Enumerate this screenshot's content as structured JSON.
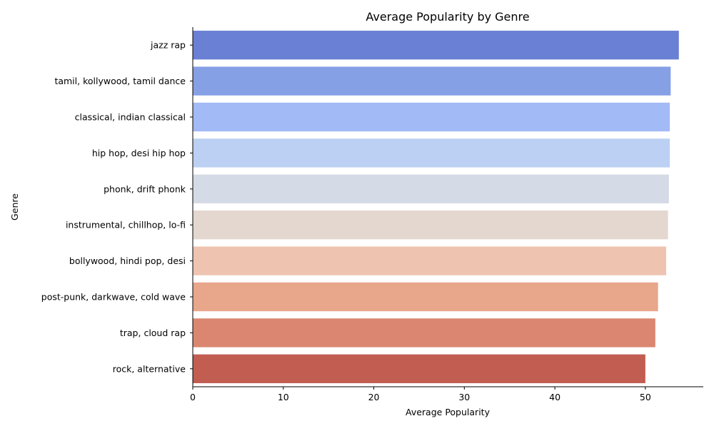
{
  "chart_data": {
    "type": "bar",
    "orientation": "horizontal",
    "title": "Average Popularity by Genre",
    "xlabel": "Average Popularity",
    "ylabel": "Genre",
    "categories": [
      "jazz rap",
      "tamil, kollywood, tamil dance",
      "classical, indian classical",
      "hip hop, desi hip hop",
      "phonk, drift phonk",
      "instrumental, chillhop, lo-fi",
      "bollywood, hindi pop, desi",
      "post-punk, darkwave, cold wave",
      "trap, cloud rap",
      "rock, alternative"
    ],
    "values": [
      53.7,
      52.8,
      52.7,
      52.7,
      52.6,
      52.5,
      52.3,
      51.4,
      51.1,
      50.0
    ],
    "xlim": [
      0,
      56.4
    ],
    "xticks": [
      0,
      10,
      20,
      30,
      40,
      50
    ],
    "grid": false,
    "legend": "none",
    "colors": [
      "#6a80d4",
      "#86a0e6",
      "#a2baf5",
      "#bcd0f3",
      "#d4dae6",
      "#e4d7cf",
      "#eec4b0",
      "#e8a68b",
      "#da8670",
      "#c25d52"
    ]
  }
}
